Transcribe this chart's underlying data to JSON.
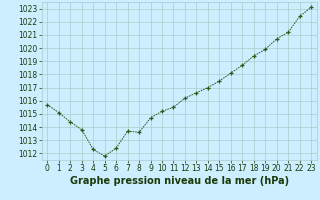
{
  "x": [
    0,
    1,
    2,
    3,
    4,
    5,
    6,
    7,
    8,
    9,
    10,
    11,
    12,
    13,
    14,
    15,
    16,
    17,
    18,
    19,
    20,
    21,
    22,
    23
  ],
  "y": [
    1015.7,
    1015.1,
    1014.4,
    1013.8,
    1012.3,
    1011.8,
    1012.4,
    1013.7,
    1013.6,
    1014.7,
    1015.2,
    1015.5,
    1016.2,
    1016.6,
    1017.0,
    1017.5,
    1018.1,
    1018.7,
    1019.4,
    1019.9,
    1020.7,
    1021.2,
    1022.4,
    1023.1
  ],
  "line_color": "#2d5a1b",
  "marker": "+",
  "bg_color": "#cceeff",
  "grid_color": "#aacccc",
  "xlabel": "Graphe pression niveau de la mer (hPa)",
  "ylim": [
    1011.5,
    1023.5
  ],
  "yticks": [
    1012,
    1013,
    1014,
    1015,
    1016,
    1017,
    1018,
    1019,
    1020,
    1021,
    1022,
    1023
  ],
  "xticks": [
    0,
    1,
    2,
    3,
    4,
    5,
    6,
    7,
    8,
    9,
    10,
    11,
    12,
    13,
    14,
    15,
    16,
    17,
    18,
    19,
    20,
    21,
    22,
    23
  ],
  "tick_fontsize": 5.5,
  "xlabel_fontsize": 7,
  "label_color": "#1a3a0a"
}
